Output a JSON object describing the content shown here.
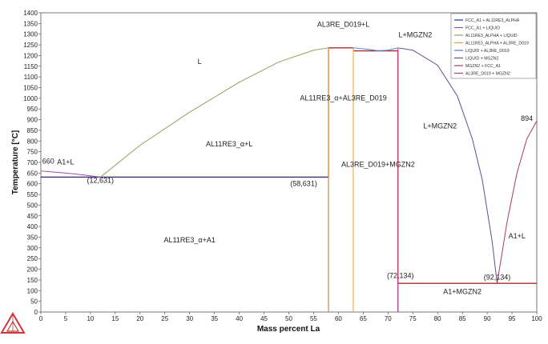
{
  "chart_data": {
    "type": "line",
    "xlabel": "Mass percent La",
    "ylabel": "Temperature [°C]",
    "xlim": [
      0,
      100
    ],
    "ylim": [
      0,
      1400
    ],
    "xticks": [
      0,
      5,
      10,
      15,
      20,
      25,
      30,
      35,
      40,
      45,
      50,
      55,
      60,
      65,
      70,
      75,
      80,
      85,
      90,
      95,
      100
    ],
    "yticks": [
      0,
      50,
      100,
      150,
      200,
      250,
      300,
      350,
      400,
      450,
      500,
      550,
      600,
      650,
      700,
      750,
      800,
      850,
      900,
      950,
      1000,
      1050,
      1100,
      1150,
      1200,
      1250,
      1300,
      1350,
      1400
    ],
    "grid": false,
    "legend_position": "top-right",
    "series": [
      {
        "name": "FCC_A1 + AL11RE3_ALPHA",
        "color": "#1f3a93",
        "segments": [
          [
            [
              0,
              631
            ],
            [
              58,
              631
            ]
          ]
        ]
      },
      {
        "name": "FCC_A1 + LIQUID",
        "color": "#9a4ab0",
        "segments": [
          [
            [
              0,
              660
            ],
            [
              2,
              656
            ],
            [
              6,
              648
            ],
            [
              9,
              640
            ],
            [
              12,
              631
            ]
          ]
        ]
      },
      {
        "name": "AL11RE3_ALPHA + LIQUID",
        "color": "#8fa35a",
        "segments": [
          [
            [
              12,
              631
            ],
            [
              20,
              780
            ],
            [
              30,
              935
            ],
            [
              40,
              1075
            ],
            [
              48,
              1170
            ],
            [
              55,
              1225
            ],
            [
              58,
              1236
            ]
          ]
        ]
      },
      {
        "name": "AL11RE3_ALPHA + AL3RE_D019",
        "color": "#e8a13a",
        "segments": [
          [
            [
              58,
              1236
            ],
            [
              58,
              0
            ]
          ],
          [
            [
              63,
              1236
            ],
            [
              63,
              0
            ]
          ]
        ]
      },
      {
        "name": "LIQUID + AL3RE_D019",
        "color": "#4a7fd0",
        "segments": [
          [
            [
              63,
              1236
            ],
            [
              66,
              1229
            ],
            [
              68,
              1222
            ],
            [
              70,
              1225
            ],
            [
              72,
              1236
            ]
          ]
        ]
      },
      {
        "name": "LIQUID + MGZN2",
        "color": "#6a4a8a",
        "segments": [
          [
            [
              72,
              1236
            ],
            [
              75,
              1225
            ],
            [
              80,
              1155
            ],
            [
              84,
              1010
            ],
            [
              87,
              810
            ],
            [
              89,
              620
            ],
            [
              91,
              330
            ],
            [
              92,
              134
            ]
          ]
        ]
      },
      {
        "name": "MGZN2 + FCC_A1",
        "color": "#a83a6e",
        "segments": [
          [
            [
              92,
              134
            ],
            [
              94,
              420
            ],
            [
              96,
              650
            ],
            [
              98,
              810
            ],
            [
              100,
              894
            ]
          ]
        ]
      },
      {
        "name": "AL3RE_D019 + MGZN2",
        "color": "#c0397a",
        "segments": [
          [
            [
              72,
              1236
            ],
            [
              72,
              0
            ]
          ]
        ]
      }
    ],
    "invariant_lines": [
      {
        "color": "#b02a2a",
        "points": [
          [
            0,
            631
          ],
          [
            58,
            631
          ]
        ]
      },
      {
        "color": "#b02a2a",
        "points": [
          [
            58,
            1236
          ],
          [
            63,
            1236
          ]
        ]
      },
      {
        "color": "#b02a2a",
        "points": [
          [
            63,
            1222
          ],
          [
            72,
            1222
          ]
        ]
      },
      {
        "color": "#b02a2a",
        "points": [
          [
            58,
            1236
          ],
          [
            58,
            631
          ]
        ]
      },
      {
        "color": "#b02a2a",
        "points": [
          [
            72,
            1222
          ],
          [
            72,
            134
          ]
        ]
      },
      {
        "color": "#b02a2a",
        "points": [
          [
            72,
            134
          ],
          [
            100,
            134
          ]
        ]
      },
      {
        "color": "#4a7fd0",
        "points": [
          [
            58,
            631
          ],
          [
            58,
            0
          ]
        ]
      },
      {
        "color": "#4a7fd0",
        "points": [
          [
            72,
            134
          ],
          [
            72,
            0
          ]
        ]
      }
    ],
    "annotations": [
      {
        "text": "L",
        "x": 32,
        "y": 1160
      },
      {
        "text": "L+MGZN2",
        "x": 80.5,
        "y": 860
      },
      {
        "text": "AL3RE_D019+L",
        "x": 61,
        "y": 1335
      },
      {
        "text": "L+MGZN2",
        "x": 75.5,
        "y": 1285
      },
      {
        "text": "AL11RE3_α+AL3RE_D019",
        "x": 61,
        "y": 990
      },
      {
        "text": "AL11RE3_α+L",
        "x": 38,
        "y": 775
      },
      {
        "text": "AL3RE_D019+MGZN2",
        "x": 68,
        "y": 680
      },
      {
        "text": "A1+L",
        "x": 5,
        "y": 690
      },
      {
        "text": "660",
        "x": 1.5,
        "y": 695
      },
      {
        "text": "894",
        "x": 98,
        "y": 895
      },
      {
        "text": "(12,631)",
        "x": 12,
        "y": 605
      },
      {
        "text": "(58,631)",
        "x": 53,
        "y": 590
      },
      {
        "text": "(72,134)",
        "x": 72.5,
        "y": 160
      },
      {
        "text": "(92,134)",
        "x": 92,
        "y": 152
      },
      {
        "text": "A1+L",
        "x": 96,
        "y": 345
      },
      {
        "text": "AL11RE3_α+A1",
        "x": 30,
        "y": 325
      },
      {
        "text": "A1+MGZN2",
        "x": 85,
        "y": 85
      }
    ]
  }
}
